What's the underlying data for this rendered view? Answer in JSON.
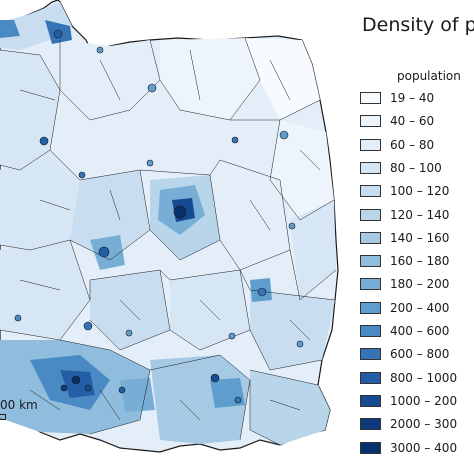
{
  "map": {
    "title": "Density of po",
    "legend_title": "population",
    "legend": [
      {
        "label": "19 – 40",
        "color": "#f7fbff"
      },
      {
        "label": "40 – 60",
        "color": "#eef4fc"
      },
      {
        "label": "60 – 80",
        "color": "#e3eef9"
      },
      {
        "label": "80 – 100",
        "color": "#d6e6f5"
      },
      {
        "label": "100 – 120",
        "color": "#c8ddf0"
      },
      {
        "label": "120 – 140",
        "color": "#b8d5ea"
      },
      {
        "label": "140 – 160",
        "color": "#a6cae4"
      },
      {
        "label": "160 – 180",
        "color": "#90bddd"
      },
      {
        "label": "180 – 200",
        "color": "#78aed6"
      },
      {
        "label": "200 – 400",
        "color": "#5e9ecf"
      },
      {
        "label": "400 – 600",
        "color": "#4a8ac4"
      },
      {
        "label": "600 – 800",
        "color": "#3674b5"
      },
      {
        "label": "800 – 1000",
        "color": "#245ea6"
      },
      {
        "label": "1000 – 200",
        "color": "#164b92"
      },
      {
        "label": "2000 – 300",
        "color": "#0c3a7a"
      },
      {
        "label": "3000 – 400",
        "color": "#08306b"
      }
    ],
    "scale_label": "00 km",
    "country_fill": "#e3eef9",
    "border_color": "#1a1a1a"
  }
}
